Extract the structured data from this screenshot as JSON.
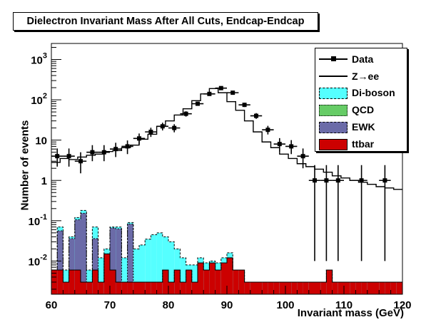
{
  "chart_data": {
    "type": "histogram",
    "title": "Dielectron Invariant Mass After All Cuts, Endcap-Endcap",
    "xlabel": "Invariant mass (GeV)",
    "ylabel": "Number of events",
    "xlim": [
      60,
      120
    ],
    "ylim": [
      0.0015,
      2500
    ],
    "log_y": true,
    "bin_width": 2,
    "x_ticks": [
      "60",
      "70",
      "80",
      "90",
      "100",
      "110",
      "120"
    ],
    "y_ticks": [
      {
        "base": "10",
        "exp": "-2",
        "value": 0.01
      },
      {
        "base": "10",
        "exp": "-1",
        "value": 0.1
      },
      {
        "base": "1",
        "exp": "",
        "value": 1
      },
      {
        "base": "10",
        "exp": "",
        "value": 10
      },
      {
        "base": "10",
        "exp": "2",
        "value": 100
      },
      {
        "base": "10",
        "exp": "3",
        "value": 1000
      }
    ],
    "legend_position": "top-right",
    "legend": [
      {
        "label": "Data",
        "style": "marker",
        "color": "#000000"
      },
      {
        "label": "Z→ee",
        "style": "line",
        "color": "#000000"
      },
      {
        "label": "Di-boson",
        "style": "fill",
        "color": "#55ffff",
        "line": "#000000"
      },
      {
        "label": "QCD",
        "style": "fill",
        "color": "#66cc66",
        "line": "#000000"
      },
      {
        "label": "EWK",
        "style": "fill",
        "color": "#6b6ba8",
        "line": "#000000"
      },
      {
        "label": "ttbar",
        "style": "fill",
        "color": "#cc0000",
        "line": "#000000"
      }
    ],
    "stack_components": {
      "ttbar": [
        0.006,
        0.006,
        0.003,
        0.006,
        0.006,
        0.003,
        0.003,
        0.006,
        0.003,
        0.015,
        0.006,
        0.003,
        0.003,
        0.003,
        0.003,
        0.003,
        0.003,
        0.003,
        0.003,
        0.006,
        0.003,
        0.006,
        0.003,
        0.006,
        0.003,
        0.009,
        0.006,
        0.009,
        0.006,
        0.009,
        0.012,
        0.006,
        0.006,
        0.003,
        0.003,
        0.003,
        0.003,
        0.003,
        0.003,
        0.003,
        0.003,
        0.003,
        0.003,
        0.003,
        0.003,
        0.003,
        0.003,
        0.006,
        0.003,
        0.003,
        0.003,
        0.003,
        0.003,
        0.003,
        0.003,
        0.003,
        0.003,
        0.003,
        0.003,
        0.003
      ],
      "ewk": [
        0.0,
        0.05,
        0.0,
        0.03,
        0.1,
        0.15,
        0.0,
        0.03,
        0.0,
        0.0,
        0.06,
        0.06,
        0.0,
        0.08,
        0.0,
        0.0,
        0.0,
        0.0,
        0.0,
        0.0,
        0.0,
        0.0,
        0.0,
        0.0,
        0.0,
        0.0,
        0.0,
        0.0,
        0.0,
        0.0,
        0.0,
        0.0,
        0.0,
        0.0,
        0.0,
        0.0,
        0.0,
        0.0,
        0.0,
        0.0,
        0.0,
        0.0,
        0.0,
        0.0,
        0.0,
        0.0,
        0.0,
        0.0,
        0.0,
        0.0,
        0.0,
        0.0,
        0.0,
        0.0,
        0.0,
        0.0,
        0.0,
        0.0,
        0.0,
        0.0
      ],
      "diboson_total": [
        0.006,
        0.07,
        0.006,
        0.04,
        0.12,
        0.18,
        0.006,
        0.07,
        0.012,
        0.02,
        0.07,
        0.07,
        0.012,
        0.09,
        0.02,
        0.025,
        0.035,
        0.045,
        0.05,
        0.04,
        0.03,
        0.02,
        0.012,
        0.008,
        0.008,
        0.012,
        0.009,
        0.01,
        0.009,
        0.012,
        0.016,
        0.006,
        0.006,
        0.003,
        0.003,
        0.003,
        0.003,
        0.003,
        0.003,
        0.003,
        0.003,
        0.003,
        0.003,
        0.003,
        0.003,
        0.003,
        0.003,
        0.006,
        0.003,
        0.003,
        0.003,
        0.003,
        0.003,
        0.003,
        0.003,
        0.003,
        0.003,
        0.003,
        0.003,
        0.003
      ]
    },
    "zee": [
      2.8,
      3.5,
      3.3,
      3.8,
      4.2,
      4.5,
      5.2,
      5.5,
      6.5,
      7.5,
      10.5,
      14.0,
      22.0,
      30.0,
      42.0,
      60.0,
      95.0,
      140.0,
      190.0,
      150.0,
      90.0,
      55.0,
      30.0,
      16.0,
      9.0,
      6.5,
      4.5,
      3.5,
      2.6,
      2.2,
      1.9,
      1.6,
      1.3,
      1.15,
      1.0,
      0.9,
      0.8,
      0.7,
      0.65,
      0.6
    ],
    "data_points": [
      {
        "x": 61,
        "y": 4,
        "err_lo": 1.8,
        "err_hi": 2.2
      },
      {
        "x": 63,
        "y": 4,
        "err_lo": 1.8,
        "err_hi": 2.2
      },
      {
        "x": 65,
        "y": 3,
        "err_lo": 1.5,
        "err_hi": 2.0
      },
      {
        "x": 67,
        "y": 5,
        "err_lo": 2.0,
        "err_hi": 2.5
      },
      {
        "x": 69,
        "y": 5,
        "err_lo": 2.0,
        "err_hi": 2.5
      },
      {
        "x": 71,
        "y": 6,
        "err_lo": 2.2,
        "err_hi": 2.6
      },
      {
        "x": 73,
        "y": 7,
        "err_lo": 2.5,
        "err_hi": 2.8
      },
      {
        "x": 75,
        "y": 11,
        "err_lo": 3.2,
        "err_hi": 3.6
      },
      {
        "x": 77,
        "y": 16,
        "err_lo": 4.0,
        "err_hi": 4.3
      },
      {
        "x": 79,
        "y": 22,
        "err_lo": 4.6,
        "err_hi": 5.0
      },
      {
        "x": 81,
        "y": 20,
        "err_lo": 4.4,
        "err_hi": 4.8
      },
      {
        "x": 83,
        "y": 45,
        "err_lo": 6.7,
        "err_hi": 7.0
      },
      {
        "x": 85,
        "y": 80,
        "err_lo": 9.0,
        "err_hi": 9.5
      },
      {
        "x": 87,
        "y": 140,
        "err_lo": 12.0,
        "err_hi": 12.5
      },
      {
        "x": 89,
        "y": 195,
        "err_lo": 14.0,
        "err_hi": 14.5
      },
      {
        "x": 91,
        "y": 150,
        "err_lo": 12.3,
        "err_hi": 12.8
      },
      {
        "x": 93,
        "y": 75,
        "err_lo": 8.7,
        "err_hi": 9.2
      },
      {
        "x": 95,
        "y": 40,
        "err_lo": 6.3,
        "err_hi": 6.8
      },
      {
        "x": 97,
        "y": 18,
        "err_lo": 4.2,
        "err_hi": 4.6
      },
      {
        "x": 99,
        "y": 8,
        "err_lo": 2.8,
        "err_hi": 3.2
      },
      {
        "x": 101,
        "y": 7,
        "err_lo": 2.5,
        "err_hi": 3.0
      },
      {
        "x": 103,
        "y": 4,
        "err_lo": 2.0,
        "err_hi": 2.2
      },
      {
        "x": 105,
        "y": 1,
        "err_lo": 0.99,
        "err_hi": 1.4
      },
      {
        "x": 107,
        "y": 1,
        "err_lo": 0.99,
        "err_hi": 1.4
      },
      {
        "x": 109,
        "y": 1,
        "err_lo": 0.99,
        "err_hi": 1.4
      },
      {
        "x": 113,
        "y": 1,
        "err_lo": 0.99,
        "err_hi": 1.4
      },
      {
        "x": 117,
        "y": 1,
        "err_lo": 0.99,
        "err_hi": 1.4
      }
    ]
  }
}
